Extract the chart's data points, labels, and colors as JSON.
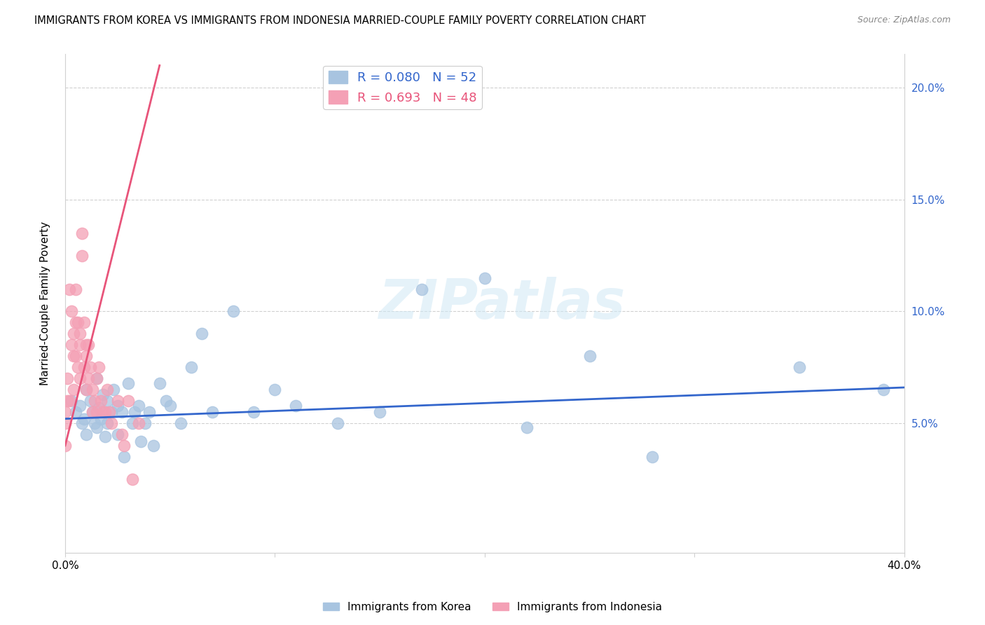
{
  "title": "IMMIGRANTS FROM KOREA VS IMMIGRANTS FROM INDONESIA MARRIED-COUPLE FAMILY POVERTY CORRELATION CHART",
  "source": "Source: ZipAtlas.com",
  "ylabel": "Married-Couple Family Poverty",
  "xlim": [
    0.0,
    0.4
  ],
  "ylim": [
    -0.008,
    0.215
  ],
  "xticks": [
    0.0,
    0.1,
    0.2,
    0.3,
    0.4
  ],
  "yticks": [
    0.0,
    0.05,
    0.1,
    0.15,
    0.2
  ],
  "ytick_labels": [
    "",
    "5.0%",
    "10.0%",
    "15.0%",
    "20.0%"
  ],
  "xtick_labels": [
    "0.0%",
    "",
    "",
    "",
    "40.0%"
  ],
  "korea_color": "#a8c4e0",
  "indonesia_color": "#f4a0b5",
  "korea_line_color": "#3366cc",
  "indonesia_line_color": "#e8547a",
  "korea_R": "0.080",
  "korea_N": "52",
  "indonesia_R": "0.693",
  "indonesia_N": "48",
  "legend_label_korea": "Immigrants from Korea",
  "legend_label_indonesia": "Immigrants from Indonesia",
  "watermark": "ZIPatlas",
  "korea_x": [
    0.003,
    0.005,
    0.007,
    0.008,
    0.009,
    0.01,
    0.01,
    0.012,
    0.013,
    0.014,
    0.015,
    0.015,
    0.016,
    0.017,
    0.018,
    0.019,
    0.02,
    0.02,
    0.022,
    0.023,
    0.025,
    0.025,
    0.027,
    0.028,
    0.03,
    0.032,
    0.033,
    0.035,
    0.036,
    0.038,
    0.04,
    0.042,
    0.045,
    0.048,
    0.05,
    0.055,
    0.06,
    0.065,
    0.07,
    0.08,
    0.09,
    0.1,
    0.11,
    0.13,
    0.15,
    0.17,
    0.2,
    0.22,
    0.25,
    0.28,
    0.35,
    0.39
  ],
  "korea_y": [
    0.06,
    0.055,
    0.058,
    0.05,
    0.052,
    0.065,
    0.045,
    0.06,
    0.055,
    0.05,
    0.07,
    0.048,
    0.057,
    0.052,
    0.063,
    0.044,
    0.06,
    0.05,
    0.055,
    0.065,
    0.058,
    0.045,
    0.055,
    0.035,
    0.068,
    0.05,
    0.055,
    0.058,
    0.042,
    0.05,
    0.055,
    0.04,
    0.068,
    0.06,
    0.058,
    0.05,
    0.075,
    0.09,
    0.055,
    0.1,
    0.055,
    0.065,
    0.058,
    0.05,
    0.055,
    0.11,
    0.115,
    0.048,
    0.08,
    0.035,
    0.075,
    0.065
  ],
  "indonesia_x": [
    0.0,
    0.0,
    0.0,
    0.001,
    0.001,
    0.002,
    0.002,
    0.003,
    0.003,
    0.004,
    0.004,
    0.004,
    0.005,
    0.005,
    0.005,
    0.006,
    0.006,
    0.007,
    0.007,
    0.007,
    0.008,
    0.008,
    0.009,
    0.009,
    0.01,
    0.01,
    0.01,
    0.011,
    0.011,
    0.012,
    0.013,
    0.013,
    0.014,
    0.015,
    0.015,
    0.016,
    0.017,
    0.018,
    0.019,
    0.02,
    0.021,
    0.022,
    0.025,
    0.027,
    0.028,
    0.03,
    0.032,
    0.035
  ],
  "indonesia_y": [
    0.055,
    0.05,
    0.04,
    0.07,
    0.06,
    0.11,
    0.06,
    0.1,
    0.085,
    0.09,
    0.08,
    0.065,
    0.11,
    0.095,
    0.08,
    0.095,
    0.075,
    0.09,
    0.085,
    0.07,
    0.135,
    0.125,
    0.095,
    0.075,
    0.085,
    0.08,
    0.065,
    0.085,
    0.07,
    0.075,
    0.065,
    0.055,
    0.06,
    0.07,
    0.055,
    0.075,
    0.06,
    0.055,
    0.055,
    0.065,
    0.055,
    0.05,
    0.06,
    0.045,
    0.04,
    0.06,
    0.025,
    0.05
  ],
  "korea_line_x": [
    0.0,
    0.4
  ],
  "korea_line_y": [
    0.052,
    0.066
  ],
  "indonesia_line_x": [
    0.0,
    0.045
  ],
  "indonesia_line_y": [
    0.04,
    0.21
  ]
}
